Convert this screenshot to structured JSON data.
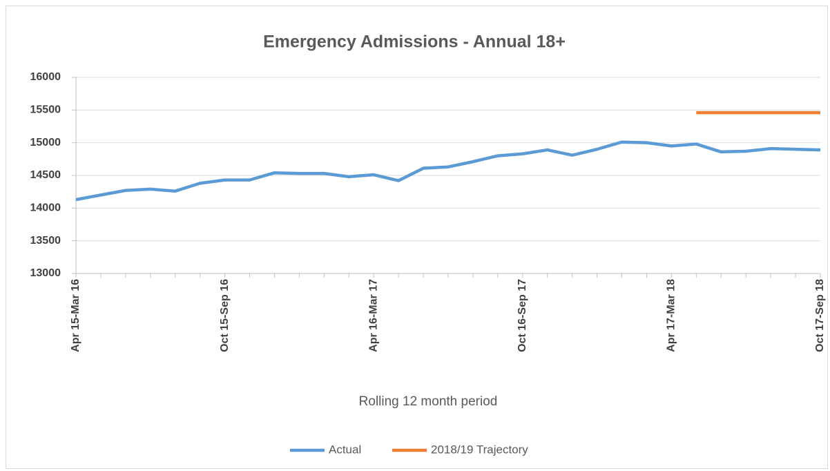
{
  "chart_data": {
    "type": "line",
    "title": "Emergency Admissions - Annual 18+",
    "x_label": "Rolling 12 month period",
    "categories": [
      "Apr 15-Mar 16",
      null,
      null,
      null,
      null,
      null,
      "Oct 15-Sep 16",
      null,
      null,
      null,
      null,
      null,
      "Apr 16-Mar 17",
      null,
      null,
      null,
      null,
      null,
      "Oct 16-Sep 17",
      null,
      null,
      null,
      null,
      null,
      "Apr 17-Mar 18",
      null,
      null,
      null,
      null,
      null,
      "Oct 17-Sep 18"
    ],
    "series": [
      {
        "name": "Actual",
        "color": "#5b9bd5",
        "values": [
          14130,
          14200,
          14270,
          14290,
          14260,
          14380,
          14430,
          14430,
          14540,
          14530,
          14530,
          14480,
          14510,
          14420,
          14610,
          14630,
          14710,
          14800,
          14830,
          14890,
          14810,
          14900,
          15010,
          15000,
          14950,
          14980,
          14860,
          14870,
          14910,
          14900,
          14890
        ]
      },
      {
        "name": "2018/19 Trajectory",
        "color": "#ed7d31",
        "values": [
          null,
          null,
          null,
          null,
          null,
          null,
          null,
          null,
          null,
          null,
          null,
          null,
          null,
          null,
          null,
          null,
          null,
          null,
          null,
          null,
          null,
          null,
          null,
          null,
          null,
          15460,
          15460,
          15460,
          15460,
          15460,
          15460
        ]
      }
    ],
    "ylim": [
      13000,
      16000
    ],
    "yticks": [
      13000,
      13500,
      14000,
      14500,
      15000,
      15500,
      16000
    ],
    "grid": true,
    "legend": "bottom"
  }
}
